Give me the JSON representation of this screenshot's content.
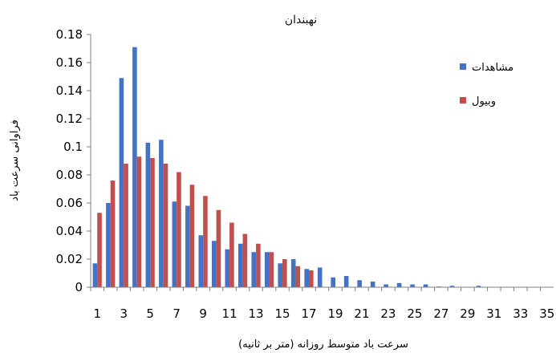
{
  "chart_data": {
    "type": "bar",
    "title": "نهبندان",
    "xlabel": "سرعت باد متوسط روزانه (متر بر ثانیه)",
    "ylabel": "فراوانی سرعت باد",
    "ylim": [
      0,
      0.18
    ],
    "yticks": [
      "0",
      "0.02",
      "0.04",
      "0.06",
      "0.08",
      "0.1",
      "0.12",
      "0.14",
      "0.16",
      "0.18"
    ],
    "xtick_labels": [
      "1",
      "3",
      "5",
      "7",
      "9",
      "11",
      "13",
      "15",
      "17",
      "19",
      "21",
      "23",
      "25",
      "27",
      "29",
      "31",
      "33",
      "35"
    ],
    "categories": [
      1,
      2,
      3,
      4,
      5,
      6,
      7,
      8,
      9,
      10,
      11,
      12,
      13,
      14,
      15,
      16,
      17,
      18,
      19,
      20,
      21,
      22,
      23,
      24,
      25,
      26,
      27,
      28,
      29,
      30,
      31,
      32,
      33,
      34,
      35
    ],
    "legend_position": "right",
    "series": [
      {
        "name": "مشاهدات",
        "color": "#4472c4",
        "values": [
          0.017,
          0.06,
          0.149,
          0.171,
          0.103,
          0.105,
          0.061,
          0.058,
          0.037,
          0.033,
          0.027,
          0.031,
          0.025,
          0.025,
          0.017,
          0.02,
          0.013,
          0.014,
          0.007,
          0.008,
          0.005,
          0.004,
          0.002,
          0.003,
          0.002,
          0.002,
          0.0005,
          0.001,
          0.0003,
          0.001,
          0,
          0,
          0,
          0,
          0
        ]
      },
      {
        "name": "وبیول",
        "color": "#c0504d",
        "values": [
          0.053,
          0.076,
          0.088,
          0.093,
          0.092,
          0.088,
          0.082,
          0.073,
          0.065,
          0.055,
          0.046,
          0.038,
          0.031,
          0.025,
          0.02,
          0.015,
          0.012,
          0,
          0,
          0,
          0,
          0,
          0,
          0,
          0,
          0,
          0,
          0,
          0,
          0,
          0,
          0,
          0,
          0,
          0
        ]
      }
    ]
  }
}
